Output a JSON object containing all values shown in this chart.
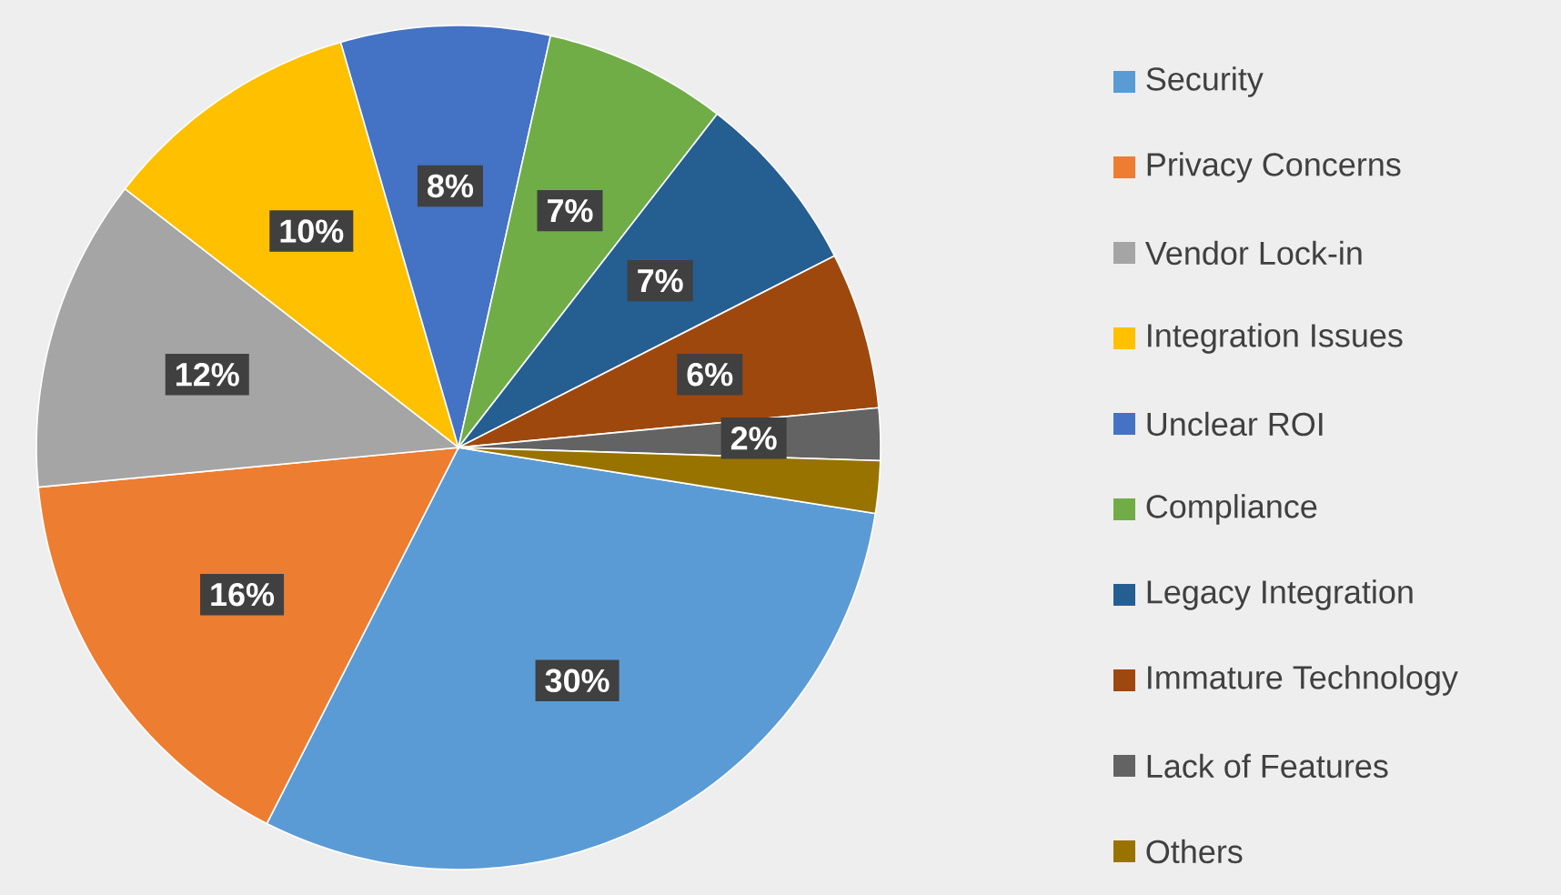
{
  "chart_data": {
    "type": "pie",
    "categories": [
      "Security",
      "Privacy Concerns",
      "Vendor Lock-in",
      "Integration Issues",
      "Unclear ROI",
      "Compliance",
      "Legacy Integration",
      "Immature Technology",
      "Lack of Features",
      "Others"
    ],
    "values": [
      30,
      16,
      12,
      10,
      8,
      7,
      7,
      6,
      2,
      2
    ],
    "value_labels": [
      "30%",
      "16%",
      "12%",
      "10%",
      "8%",
      "7%",
      "7%",
      "6%",
      "2%",
      null
    ],
    "colors": [
      "#5b9bd5",
      "#ed7d31",
      "#a5a5a5",
      "#ffc000",
      "#4472c4",
      "#70ad47",
      "#255e91",
      "#9e480e",
      "#636363",
      "#997300"
    ],
    "legend": "right"
  }
}
